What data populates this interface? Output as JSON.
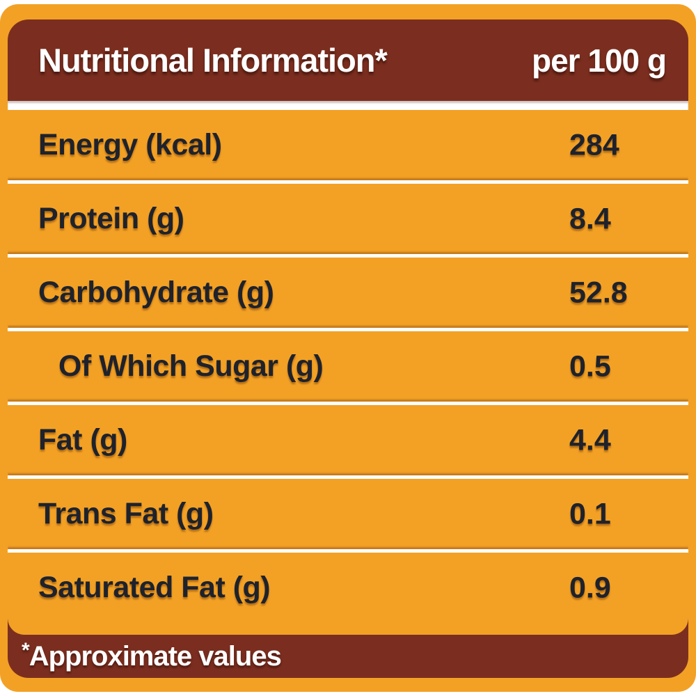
{
  "header": {
    "title": "Nutritional Information*",
    "unit": "per 100 g"
  },
  "rows": [
    {
      "label": "Energy (kcal)",
      "value": "284"
    },
    {
      "label": "Protein (g)",
      "value": "8.4"
    },
    {
      "label": "Carbohydrate (g)",
      "value": "52.8"
    },
    {
      "label": "Of Which Sugar (g)",
      "value": "0.5"
    },
    {
      "label": "Fat (g)",
      "value": "4.4"
    },
    {
      "label": "Trans Fat (g)",
      "value": "0.1"
    },
    {
      "label": "Saturated Fat (g)",
      "value": "0.9"
    }
  ],
  "footer": {
    "asterisk": "*",
    "note": "Approximate values"
  },
  "colors": {
    "orange": "#F3A125",
    "brown": "#7B2E1F",
    "text_dark": "#1E222C",
    "separator_white": "#FFFFFF"
  }
}
